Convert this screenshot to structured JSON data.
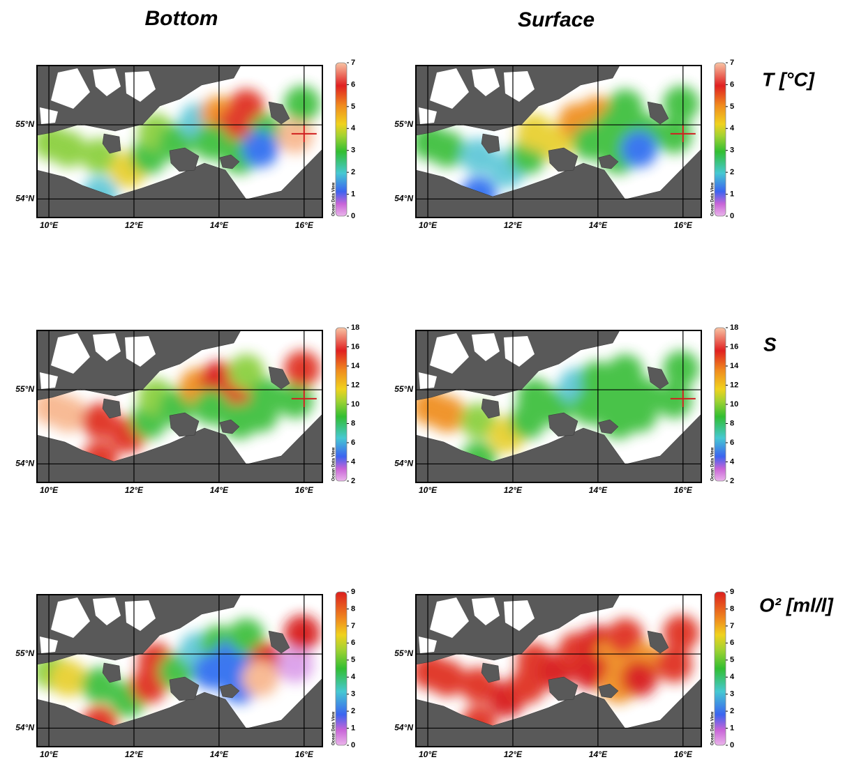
{
  "columns": [
    "Bottom",
    "Surface"
  ],
  "rows": [
    {
      "label": "T [°C]",
      "colorbar": {
        "lim": [
          0,
          7
        ],
        "ticks": [
          0,
          1,
          2,
          3,
          4,
          5,
          6,
          7
        ]
      }
    },
    {
      "label": "S",
      "colorbar": {
        "lim": [
          2,
          18
        ],
        "ticks": [
          2,
          4,
          6,
          8,
          10,
          12,
          14,
          16,
          18
        ]
      }
    },
    {
      "label": "O² [ml/l]",
      "colorbar": {
        "lim": [
          0,
          9
        ],
        "ticks": [
          0,
          1,
          2,
          3,
          4,
          5,
          6,
          7,
          8,
          9
        ]
      }
    }
  ],
  "map": {
    "xlim": [
      9.72,
      16.43
    ],
    "ylim": [
      53.75,
      55.8
    ],
    "xticks": [
      {
        "value": 10,
        "label": "10°E"
      },
      {
        "value": 12,
        "label": "12°E"
      },
      {
        "value": 14,
        "label": "14°E"
      },
      {
        "value": 16,
        "label": "16°E"
      }
    ],
    "yticks": [
      {
        "value": 54,
        "label": "54°N"
      },
      {
        "value": 55,
        "label": "55°N"
      }
    ]
  },
  "watermark": "Ocean Data View"
}
